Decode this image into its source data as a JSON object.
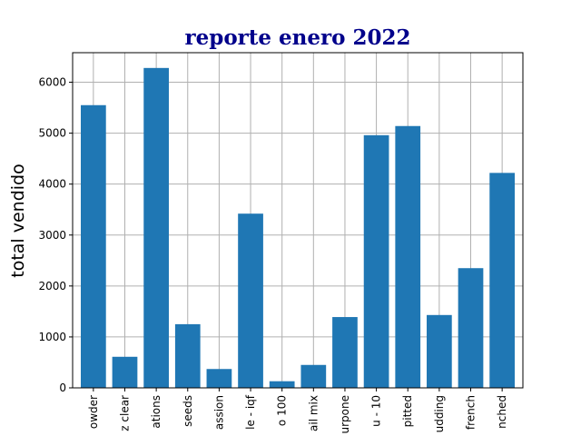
{
  "chart_data": {
    "type": "bar",
    "title": "reporte enero 2022",
    "xlabel": "",
    "ylabel": "total vendido",
    "categories": [
      "owder",
      "z clear",
      "ations",
      "seeds",
      "assion",
      "le - iqf",
      "o 100",
      "ail mix",
      "urpone",
      "u - 10",
      "pitted",
      "udding",
      "french",
      "nched"
    ],
    "values": [
      5550,
      610,
      6280,
      1250,
      370,
      3420,
      130,
      450,
      1390,
      4960,
      5140,
      1430,
      2350,
      4220
    ],
    "yticks": [
      "0",
      "1000",
      "2000",
      "3000",
      "4000",
      "5000",
      "6000"
    ],
    "ylim": [
      0,
      6580
    ],
    "grid": true,
    "bar_color": "#1f77b4",
    "title_color": "#00008b"
  }
}
